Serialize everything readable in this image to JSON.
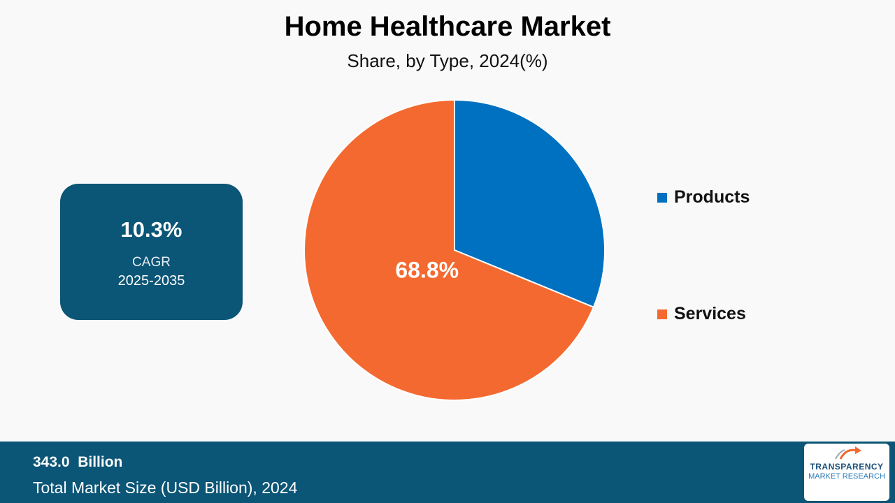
{
  "chart_data": {
    "type": "pie",
    "title": "Home Healthcare Market",
    "subtitle": "Share, by Type, 2024(%)",
    "categories": [
      "Products",
      "Services"
    ],
    "values": [
      31.2,
      68.8
    ],
    "data_labels": [
      "",
      "68.8%"
    ],
    "colors": [
      "#0070c0",
      "#f4692f"
    ],
    "legend_position": "right"
  },
  "cagr": {
    "value": "10.3%",
    "label": "CAGR",
    "range": "2025-2035"
  },
  "footer": {
    "market_size": "343.0  Billion",
    "label": "Total Market Size (USD Billion), 2024"
  },
  "logo": {
    "line1": "TRANSPARENCY",
    "line2": "MARKET RESEARCH"
  },
  "colors": {
    "panel": "#0b5576",
    "background": "#f9f9f9"
  }
}
